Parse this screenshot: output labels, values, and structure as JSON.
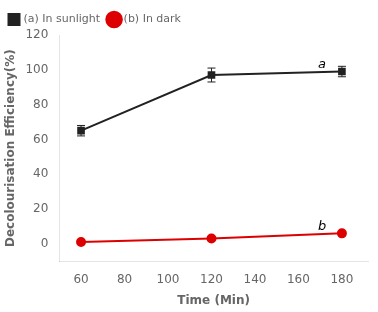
{
  "chart_data": {
    "type": "line",
    "xlabel": "Time (Min)",
    "ylabel": "Decolourisation Efficiency(%)",
    "series": [
      {
        "name": "(a) In sunlight",
        "color": "#222222",
        "marker": "square",
        "x": [
          60,
          120,
          180
        ],
        "values": [
          65,
          97,
          99
        ],
        "errors": [
          3,
          4,
          3
        ]
      },
      {
        "name": "(b) In dark",
        "color": "#dd0000",
        "marker": "circle",
        "x": [
          60,
          120,
          180
        ],
        "values": [
          1,
          3,
          6
        ],
        "errors": [
          0.5,
          0.5,
          0.5
        ]
      }
    ],
    "annotations": [
      {
        "text": "a",
        "x": 169,
        "y": 101
      },
      {
        "text": "b",
        "x": 169,
        "y": 8
      }
    ],
    "xlim": [
      50,
      192
    ],
    "ylim": [
      -10,
      120
    ],
    "xticks": [
      60,
      80,
      100,
      120,
      140,
      160,
      180
    ],
    "yticks": [
      0,
      20,
      40,
      60,
      80,
      100,
      120
    ],
    "grid": false,
    "legend": "upper left"
  }
}
